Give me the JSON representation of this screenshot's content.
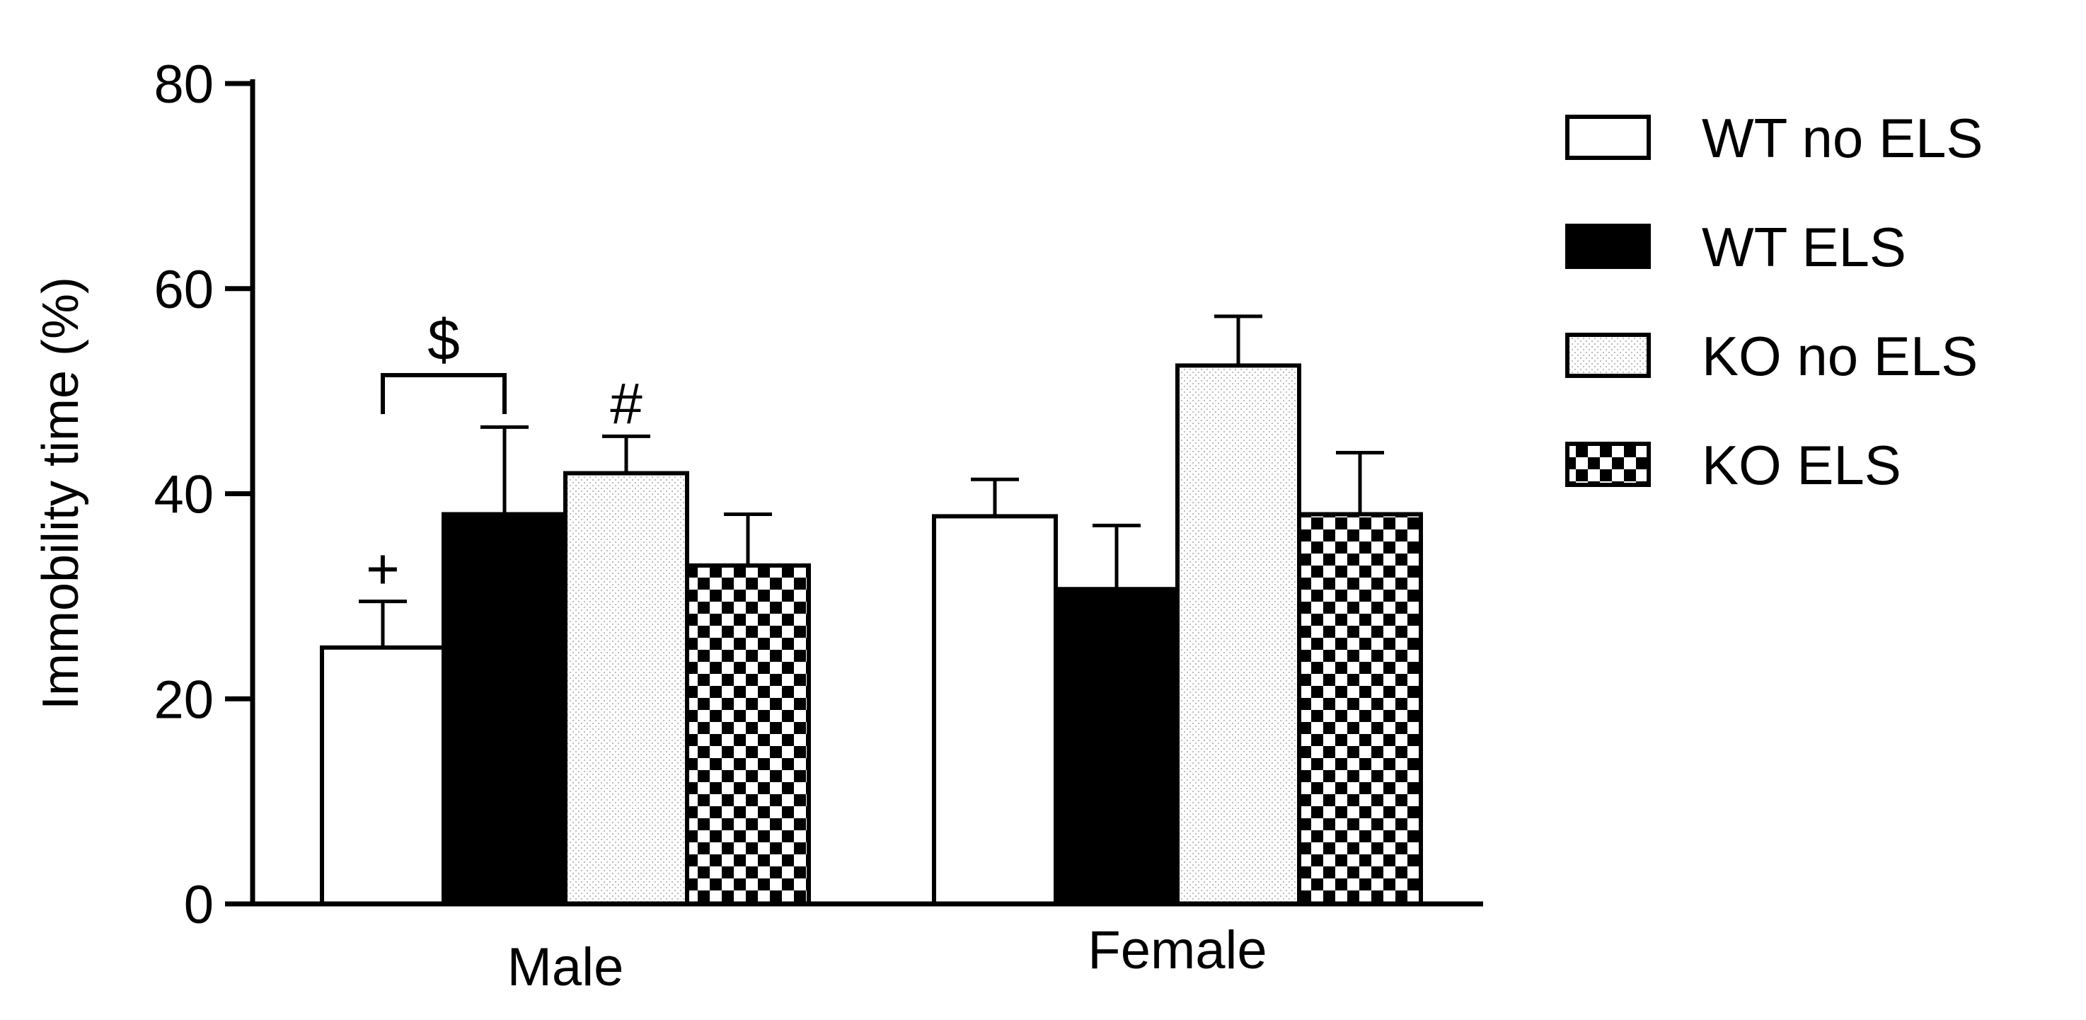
{
  "chart_data": {
    "type": "bar",
    "title": "",
    "xlabel": "",
    "ylabel": "Immobility time (%)",
    "ylim": [
      0,
      80
    ],
    "yticks": [
      "0",
      "20",
      "40",
      "60",
      "80"
    ],
    "grid": false,
    "legend_position": "right",
    "categories": [
      "Male",
      "Female"
    ],
    "series": [
      {
        "name": "WT no ELS",
        "values": [
          25,
          37.8
        ],
        "errors": [
          4.5,
          3.6
        ],
        "fill": "white"
      },
      {
        "name": "WT ELS",
        "values": [
          38,
          30.7
        ],
        "errors": [
          8.5,
          6.2
        ],
        "fill": "black"
      },
      {
        "name": "KO no ELS",
        "values": [
          42,
          52.5
        ],
        "errors": [
          3.6,
          4.8
        ],
        "fill": "stipple"
      },
      {
        "name": "KO ELS",
        "values": [
          33,
          38
        ],
        "errors": [
          5,
          6
        ],
        "fill": "checker"
      }
    ],
    "annotations": [
      {
        "text": "+",
        "category": 0,
        "series": 0
      },
      {
        "text": "$",
        "category": 0,
        "from_series": 0,
        "to_series": 1,
        "bracket": true
      },
      {
        "text": "#",
        "category": 0,
        "series": 2
      }
    ],
    "colors": {
      "ink": "#000000",
      "paper": "#ffffff",
      "stipple": "#c8c8c8"
    }
  }
}
